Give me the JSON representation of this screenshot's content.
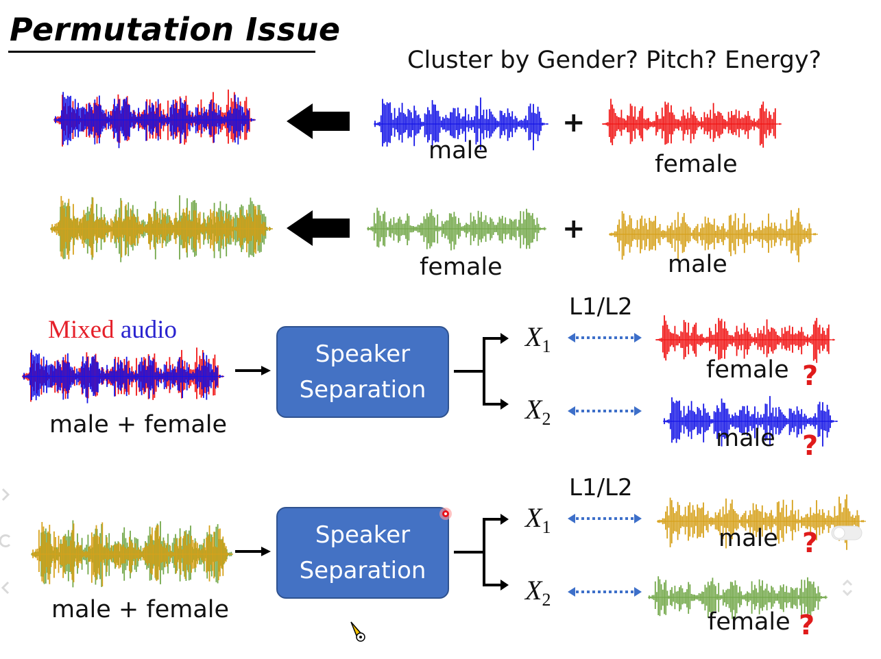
{
  "slide": {
    "title": "Permutation Issue",
    "question": "Cluster by Gender? Pitch? Energy?"
  },
  "colors": {
    "male_blue": "#1414e6",
    "female_red": "#f01414",
    "female_green": "#73a84a",
    "male_orange": "#d6a11b",
    "box": "#4472c4",
    "question_mark": "#e01b1b"
  },
  "row1": {
    "label_a": "male",
    "label_b": "female",
    "plus": "+"
  },
  "row2": {
    "label_a": "female",
    "label_b": "male",
    "plus": "+"
  },
  "block1": {
    "mixed_part1": "Mixed",
    "mixed_part2": "audio",
    "input_label": "male + female",
    "box_line1": "Speaker",
    "box_line2": "Separation",
    "out1_symbol": "X",
    "out1_sub": "1",
    "out2_symbol": "X",
    "out2_sub": "2",
    "loss": "L1/L2",
    "target1": "female",
    "target2": "male",
    "qmark": "?"
  },
  "block2": {
    "input_label": "male + female",
    "box_line1": "Speaker",
    "box_line2": "Separation",
    "out1_symbol": "X",
    "out1_sub": "1",
    "out2_symbol": "X",
    "out2_sub": "2",
    "loss": "L1/L2",
    "target1": "male",
    "target2": "female",
    "qmark": "?"
  }
}
